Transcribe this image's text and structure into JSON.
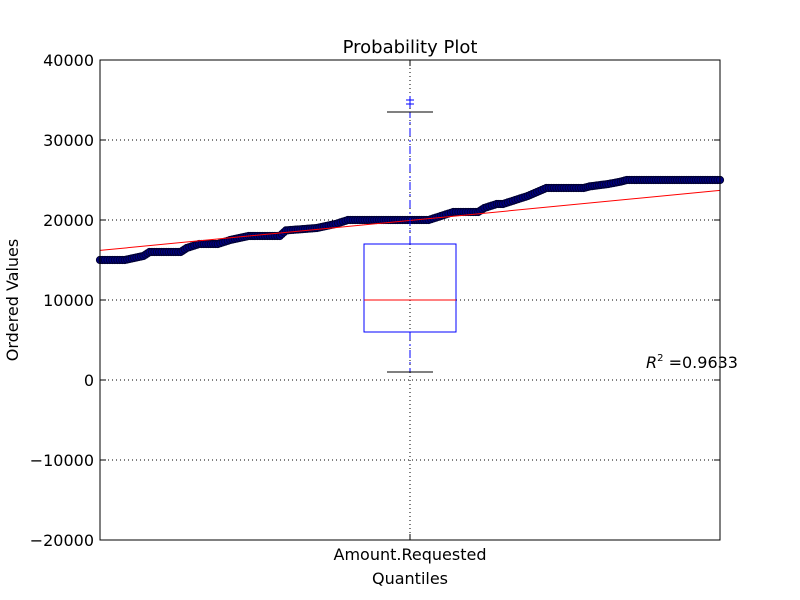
{
  "chart_data": {
    "type": "scatter",
    "title": "Probability Plot",
    "xlabel": "Quantiles",
    "ylabel": "Ordered Values",
    "x_tick_labels": [
      "Amount.Requested"
    ],
    "ylim": [
      -20000,
      40000
    ],
    "y_ticks": [
      -20000,
      -10000,
      0,
      10000,
      20000,
      30000,
      40000
    ],
    "y_tick_labels": [
      "−20000",
      "−10000",
      "0",
      "10000",
      "20000",
      "30000",
      "40000"
    ],
    "grid": true,
    "xlim": [
      0,
      1
    ],
    "series": [
      {
        "name": "ordered values",
        "kind": "scatter",
        "color": "#000080",
        "edge_color": "#000033",
        "x": [
          0.0,
          0.04,
          0.07,
          0.08,
          0.13,
          0.14,
          0.16,
          0.19,
          0.21,
          0.24,
          0.25,
          0.29,
          0.3,
          0.35,
          0.38,
          0.4,
          0.45,
          0.48,
          0.5,
          0.53,
          0.55,
          0.57,
          0.61,
          0.62,
          0.64,
          0.65,
          0.67,
          0.69,
          0.72,
          0.74,
          0.78,
          0.79,
          0.82,
          0.84,
          0.85,
          0.87,
          0.98,
          1.0
        ],
        "y": [
          15000,
          15000,
          15500,
          16000,
          16000,
          16500,
          17000,
          17000,
          17500,
          18000,
          18000,
          18000,
          18700,
          19000,
          19500,
          20000,
          20000,
          20000,
          20000,
          20000,
          20500,
          21000,
          21000,
          21500,
          22000,
          22000,
          22500,
          23000,
          24000,
          24000,
          24000,
          24200,
          24500,
          24800,
          25000,
          25000,
          25000,
          25000
        ]
      },
      {
        "name": "fit line",
        "kind": "line",
        "color": "#ff0000",
        "x": [
          0,
          1
        ],
        "y": [
          16200,
          23700
        ]
      }
    ],
    "boxplot": {
      "color": "#0000ff",
      "median_color": "#ff0000",
      "position": 0.5,
      "whisker_low": 1000,
      "q1": 6000,
      "median": 10000,
      "q3": 17000,
      "whisker_high": 33500,
      "fliers": [
        34500,
        35000
      ]
    },
    "annotation": {
      "text_main": "R",
      "text_sup": "2",
      "text_rest": " =0.9633",
      "position": "right"
    }
  }
}
